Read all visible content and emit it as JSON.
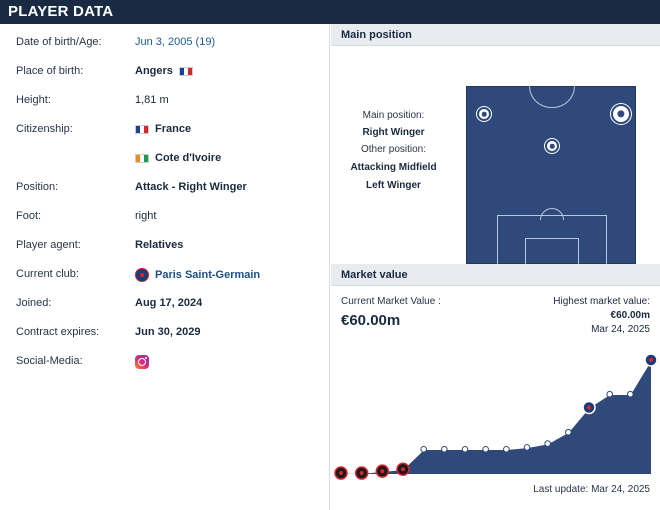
{
  "header": {
    "title": "PLAYER DATA"
  },
  "player": {
    "dob_label": "Date of birth/Age:",
    "dob_value": "Jun 3, 2005 (19)",
    "pob_label": "Place of birth:",
    "pob_value": "Angers",
    "height_label": "Height:",
    "height_value": "1,81 m",
    "citizenship_label": "Citizenship:",
    "citizenship_1": "France",
    "citizenship_2": "Cote d'Ivoire",
    "position_label": "Position:",
    "position_value": "Attack - Right Winger",
    "foot_label": "Foot:",
    "foot_value": "right",
    "agent_label": "Player agent:",
    "agent_value": "Relatives",
    "club_label": "Current club:",
    "club_value": "Paris Saint-Germain",
    "joined_label": "Joined:",
    "joined_value": "Aug 17, 2024",
    "contract_label": "Contract expires:",
    "contract_value": "Jun 30, 2029",
    "social_label": "Social-Media:"
  },
  "main_position": {
    "title": "Main position",
    "main_label": "Main position:",
    "main_value": "Right Winger",
    "other_label": "Other position:",
    "other_1": "Attacking Midfield",
    "other_2": "Left Winger"
  },
  "market_value": {
    "title": "Market value",
    "current_label": "Current Market Value :",
    "current_value": "€60.00m",
    "highest_label": "Highest market value:",
    "highest_value": "€60.00m",
    "highest_date": "Mar 24, 2025",
    "last_update": "Last update: Mar 24, 2025"
  },
  "colors": {
    "header_bg": "#1b2a43",
    "pitch": "#2f4a7a",
    "chart_fill": "#2f4a7a",
    "link": "#1a5a9c"
  },
  "chart_data": {
    "type": "area",
    "title": "",
    "xlabel": "",
    "ylabel": "",
    "series": [
      {
        "values": [
          0.5,
          0.5,
          1.5,
          2.5,
          13,
          13,
          13,
          13,
          13,
          14,
          16,
          22,
          35,
          42,
          42,
          60
        ]
      }
    ],
    "clubs_at_points": [
      "Stade Rennais",
      "Stade Rennais",
      "Stade Rennais",
      "Stade Rennais",
      "",
      "",
      "",
      "",
      "",
      "",
      "",
      "",
      "Paris Saint-Germain",
      "",
      "",
      "Paris Saint-Germain"
    ],
    "ylim": [
      0,
      60
    ],
    "grid": false,
    "legend": "none"
  }
}
